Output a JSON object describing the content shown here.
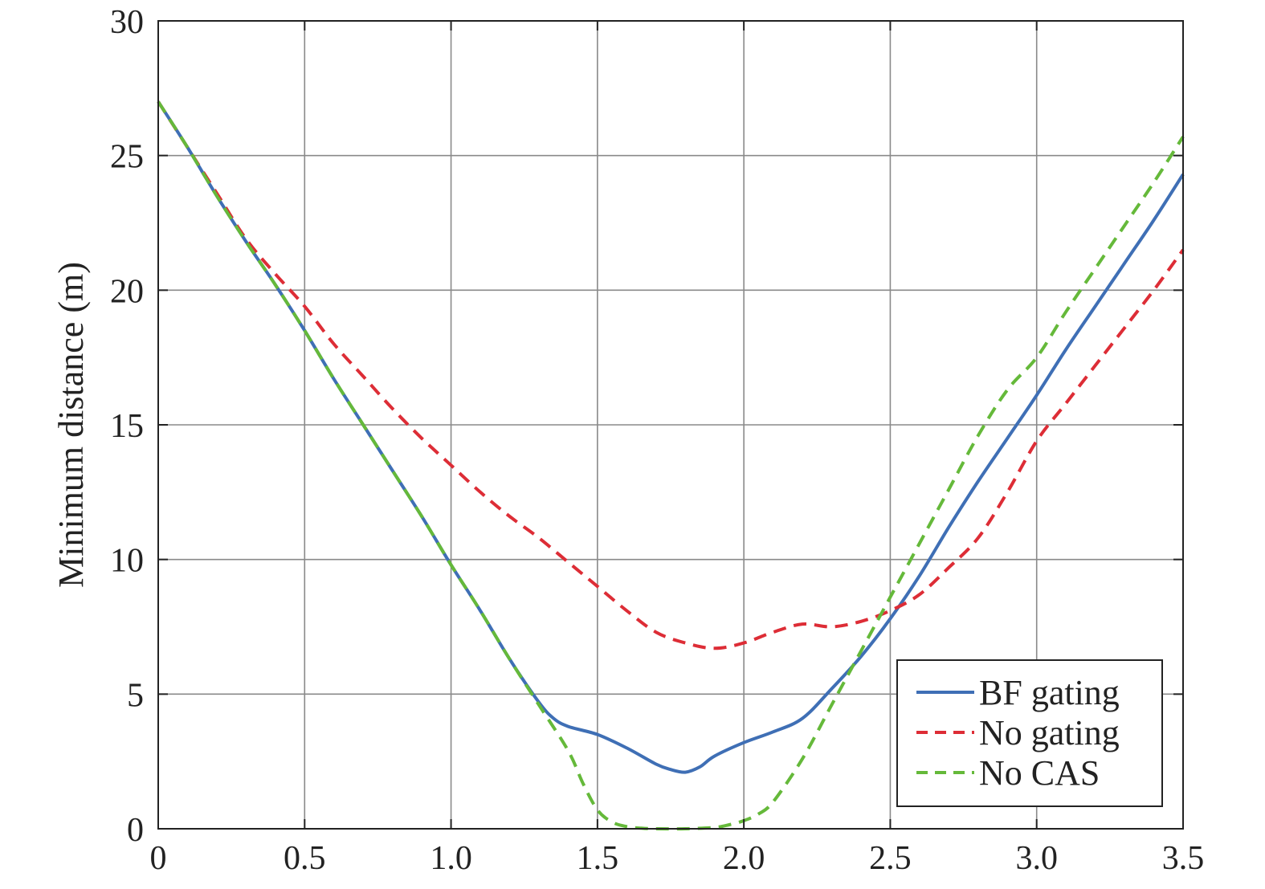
{
  "chart_data": {
    "type": "line",
    "title": "",
    "xlabel": "",
    "ylabel": "Minimum distance (m)",
    "xlim": [
      0,
      3.5
    ],
    "ylim": [
      0,
      30
    ],
    "x_ticks": [
      "0",
      "0.5",
      "1.0",
      "1.5",
      "2.0",
      "2.5",
      "3.0",
      "3.5"
    ],
    "y_ticks": [
      "0",
      "5",
      "10",
      "15",
      "20",
      "25",
      "30"
    ],
    "grid": true,
    "legend_position": "bottom-right",
    "series": [
      {
        "name": "BF gating",
        "color": "#3f6fb5",
        "dash": "solid",
        "x": [
          0,
          0.1,
          0.2,
          0.3,
          0.4,
          0.5,
          0.6,
          0.7,
          0.8,
          0.9,
          1.0,
          1.1,
          1.2,
          1.3,
          1.35,
          1.4,
          1.5,
          1.6,
          1.7,
          1.75,
          1.8,
          1.85,
          1.9,
          2.0,
          2.1,
          2.2,
          2.3,
          2.4,
          2.5,
          2.6,
          2.7,
          2.8,
          2.9,
          3.0,
          3.1,
          3.2,
          3.3,
          3.4,
          3.5
        ],
        "y": [
          27.0,
          25.3,
          23.5,
          21.8,
          20.2,
          18.5,
          16.7,
          15.0,
          13.3,
          11.6,
          9.8,
          8.1,
          6.3,
          4.7,
          4.1,
          3.8,
          3.5,
          3.0,
          2.4,
          2.2,
          2.1,
          2.3,
          2.7,
          3.2,
          3.6,
          4.1,
          5.2,
          6.4,
          7.8,
          9.4,
          11.2,
          12.9,
          14.5,
          16.1,
          17.8,
          19.4,
          21.0,
          22.6,
          24.3
        ]
      },
      {
        "name": "No gating",
        "color": "#dd2d36",
        "dash": "dashed",
        "x": [
          0,
          0.1,
          0.2,
          0.3,
          0.4,
          0.5,
          0.6,
          0.7,
          0.8,
          0.9,
          1.0,
          1.1,
          1.2,
          1.3,
          1.4,
          1.5,
          1.6,
          1.7,
          1.8,
          1.9,
          2.0,
          2.1,
          2.2,
          2.3,
          2.4,
          2.5,
          2.6,
          2.7,
          2.8,
          2.9,
          3.0,
          3.1,
          3.2,
          3.3,
          3.4,
          3.5
        ],
        "y": [
          27.0,
          25.3,
          23.6,
          21.9,
          20.6,
          19.4,
          18.0,
          16.8,
          15.6,
          14.5,
          13.5,
          12.5,
          11.6,
          10.8,
          9.9,
          9.0,
          8.1,
          7.3,
          6.9,
          6.7,
          6.9,
          7.3,
          7.6,
          7.5,
          7.7,
          8.1,
          8.7,
          9.7,
          10.8,
          12.5,
          14.4,
          15.8,
          17.2,
          18.6,
          20.0,
          21.5
        ]
      },
      {
        "name": "No CAS",
        "color": "#65b93a",
        "dash": "dashed",
        "x": [
          0,
          0.1,
          0.2,
          0.3,
          0.4,
          0.5,
          0.6,
          0.7,
          0.8,
          0.9,
          1.0,
          1.1,
          1.2,
          1.3,
          1.4,
          1.45,
          1.5,
          1.55,
          1.6,
          1.65,
          1.7,
          1.8,
          1.9,
          1.95,
          2.0,
          2.05,
          2.1,
          2.2,
          2.3,
          2.4,
          2.5,
          2.6,
          2.7,
          2.8,
          2.9,
          3.0,
          3.1,
          3.2,
          3.3,
          3.4,
          3.5
        ],
        "y": [
          27.0,
          25.3,
          23.5,
          21.8,
          20.2,
          18.5,
          16.7,
          15.0,
          13.3,
          11.6,
          9.8,
          8.1,
          6.3,
          4.6,
          2.9,
          1.7,
          0.7,
          0.25,
          0.08,
          0.02,
          0.0,
          0.0,
          0.05,
          0.15,
          0.3,
          0.55,
          1.0,
          2.6,
          4.6,
          6.6,
          8.6,
          10.6,
          12.6,
          14.6,
          16.3,
          17.5,
          19.2,
          20.8,
          22.4,
          24.0,
          25.7
        ]
      }
    ]
  }
}
